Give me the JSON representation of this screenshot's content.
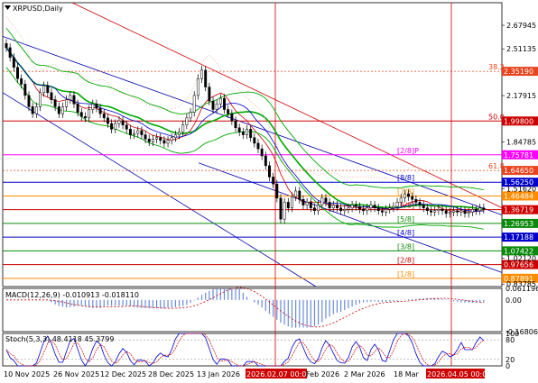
{
  "symbol_label": "XRPUSD,Daily",
  "main_panel": {
    "ylim": [
      0.82,
      2.84
    ],
    "price_ticks": [
      "2.67945",
      "2.51135",
      "2.17915",
      "1.84785",
      "1.51620",
      "1.02120",
      "0.83785"
    ],
    "h_levels": [
      {
        "price": 2.3519,
        "label": "2.35190",
        "color": "#e8441e",
        "style": "dot",
        "fib": "38.2"
      },
      {
        "price": 1.998,
        "label": "1.99800",
        "color": "#cc0000",
        "style": "solid",
        "fib": "50.0"
      },
      {
        "price": 1.75781,
        "label": "1.75781",
        "color": "#ff00ff",
        "style": "solid",
        "murrey": "[2/8]P"
      },
      {
        "price": 1.6465,
        "label": "1.64650",
        "color": "#e8441e",
        "style": "dot",
        "fib": "61.8"
      },
      {
        "price": 1.5625,
        "label": "1.56250",
        "color": "#0000cc",
        "style": "solid",
        "murrey": "[8/8]"
      },
      {
        "price": 1.46484,
        "label": "1.46484",
        "color": "#ff8c00",
        "style": "solid",
        "murrey": "[7/8]"
      },
      {
        "price": 1.36719,
        "label": "1.36719",
        "color": "#cc0000",
        "style": "solid",
        "murrey": "[6/8]"
      },
      {
        "price": 1.26953,
        "label": "1.26953",
        "color": "#0a8a0a",
        "style": "solid",
        "murrey": "[5/8]"
      },
      {
        "price": 1.17188,
        "label": "1.17188",
        "color": "#0000cc",
        "style": "solid",
        "murrey": "[4/8]"
      },
      {
        "price": 1.07422,
        "label": "1.07422",
        "color": "#0a8a0a",
        "style": "solid",
        "murrey": "[3/8]"
      },
      {
        "price": 0.97656,
        "label": "0.97656",
        "color": "#cc0000",
        "style": "solid",
        "murrey": "[2/8]"
      },
      {
        "price": 0.87891,
        "label": "0.87891",
        "color": "#ff8c00",
        "style": "solid",
        "murrey": "[1/8]"
      }
    ]
  },
  "macd_panel": {
    "label": "MACD(12,26,9) -0.010913 -0.018110",
    "ticks": [
      "0.061196",
      "0.00",
      "-0.168064"
    ]
  },
  "stoch_panel": {
    "label": "Stoch(5,3,3) 48.4118 45.3799",
    "ticks": [
      "100",
      "80",
      "20",
      "0"
    ]
  },
  "x_axis": {
    "labels": [
      "10 Nov 2025",
      "26 Nov 2025",
      "12 Dec 2025",
      "28 Dec 2025",
      "13 Jan 2026",
      "2026.02.07 00:00",
      "Feb 2026",
      "2 Mar 2026",
      "18 Mar",
      "2026.04.05 00:00"
    ],
    "highlighted": [
      "2026.02.07 00:00",
      "2026.04.05 00:00"
    ]
  },
  "chart_data": {
    "type": "line",
    "title": "XRPUSD,Daily",
    "candles_close": [
      2.52,
      2.45,
      2.38,
      2.3,
      2.26,
      2.18,
      2.1,
      2.05,
      2.1,
      2.2,
      2.25,
      2.2,
      2.15,
      2.1,
      2.05,
      2.1,
      2.15,
      2.18,
      2.12,
      2.06,
      2.03,
      2.02,
      2.08,
      2.12,
      2.09,
      2.05,
      2.02,
      1.98,
      1.94,
      1.98,
      2.0,
      1.97,
      1.94,
      1.9,
      1.91,
      1.93,
      1.9,
      1.87,
      1.85,
      1.87,
      1.88,
      1.86,
      1.84,
      1.86,
      1.88,
      1.9,
      1.92,
      1.97,
      2.02,
      2.06,
      2.18,
      2.3,
      2.36,
      2.24,
      2.14,
      2.08,
      2.12,
      2.16,
      2.08,
      2.05,
      2.0,
      1.95,
      1.92,
      1.9,
      1.94,
      1.88,
      1.84,
      1.8,
      1.75,
      1.68,
      1.6,
      1.55,
      1.45,
      1.3,
      1.42,
      1.38,
      1.46,
      1.5,
      1.44,
      1.4,
      1.42,
      1.38,
      1.36,
      1.4,
      1.45,
      1.42,
      1.38,
      1.4,
      1.38,
      1.36,
      1.37,
      1.38,
      1.4,
      1.39,
      1.37,
      1.36,
      1.38,
      1.4,
      1.38,
      1.36,
      1.35,
      1.37,
      1.38,
      1.39,
      1.42,
      1.45,
      1.48,
      1.46,
      1.44,
      1.42,
      1.4,
      1.38,
      1.36,
      1.35,
      1.36,
      1.37,
      1.36,
      1.34,
      1.35,
      1.36,
      1.35,
      1.36,
      1.34,
      1.35,
      1.37,
      1.36,
      1.38,
      1.37
    ],
    "ylim": [
      0.82,
      2.84
    ],
    "macd_ylim": [
      -0.168064,
      0.061196
    ],
    "stoch_ylim": [
      0,
      100
    ],
    "series": [
      {
        "name": "MACD(12,26,9)",
        "last": -0.010913
      },
      {
        "name": "Signal",
        "last": -0.01811
      },
      {
        "name": "Stoch(5,3,3) %K",
        "last": 48.4118
      },
      {
        "name": "Stoch(5,3,3) %D",
        "last": 45.3799
      }
    ]
  }
}
